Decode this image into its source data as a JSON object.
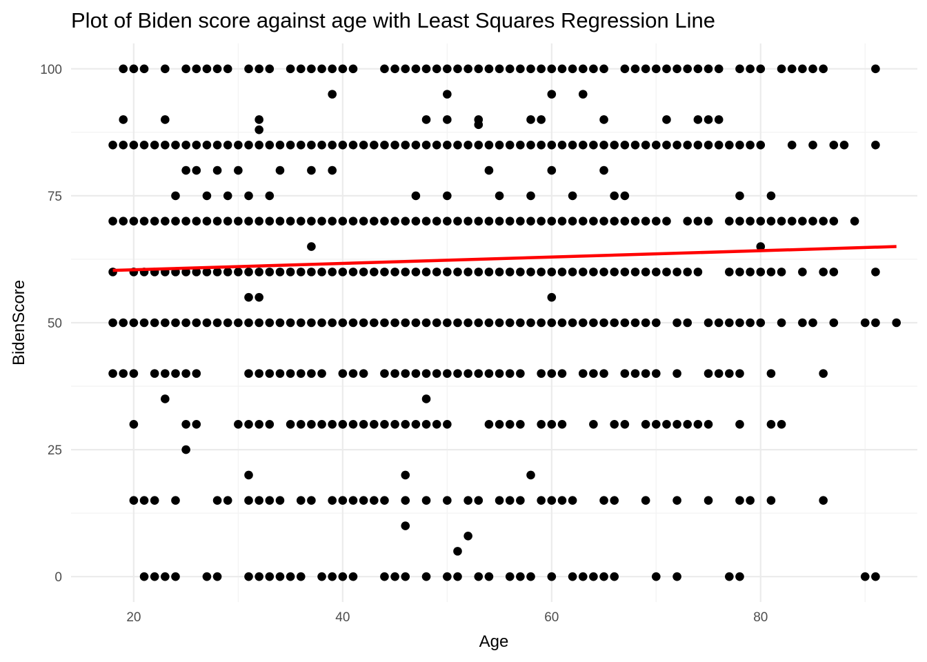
{
  "chart_data": {
    "type": "scatter",
    "title": "Plot of Biden score against age with Least Squares Regression Line",
    "xlabel": "Age",
    "ylabel": "BidenScore",
    "xlim": [
      14,
      95
    ],
    "ylim": [
      -5,
      105
    ],
    "x_ticks": [
      20,
      40,
      60,
      80
    ],
    "y_ticks": [
      0,
      25,
      50,
      75,
      100
    ],
    "grid": true,
    "legend": "none",
    "point_color": "#000000",
    "line_color": "#ff0000",
    "regression_line": {
      "x": [
        18,
        93
      ],
      "y": [
        60.3,
        65.0
      ]
    },
    "rows": [
      {
        "y": 100,
        "x": [
          19,
          20,
          21,
          23,
          25,
          26,
          27,
          28,
          29,
          31,
          32,
          33,
          35,
          36,
          37,
          38,
          39,
          40,
          41,
          44,
          45,
          46,
          47,
          48,
          49,
          50,
          51,
          52,
          53,
          54,
          55,
          56,
          57,
          58,
          59,
          60,
          61,
          62,
          63,
          64,
          65,
          67,
          68,
          69,
          70,
          71,
          72,
          73,
          74,
          75,
          76,
          78,
          79,
          80,
          82,
          83,
          84,
          85,
          86,
          91
        ]
      },
      {
        "y": 95,
        "x": [
          39,
          50,
          60,
          63
        ]
      },
      {
        "y": 90,
        "x": [
          19,
          23,
          32,
          48,
          50,
          53,
          58,
          59,
          65,
          71,
          74,
          75,
          76
        ]
      },
      {
        "y": 89,
        "x": [
          53
        ]
      },
      {
        "y": 88,
        "x": [
          32
        ]
      },
      {
        "y": 85,
        "x": [
          18,
          19,
          20,
          21,
          22,
          23,
          24,
          25,
          26,
          27,
          28,
          29,
          30,
          31,
          32,
          33,
          34,
          35,
          36,
          37,
          38,
          39,
          40,
          41,
          42,
          43,
          44,
          45,
          46,
          47,
          48,
          49,
          50,
          51,
          52,
          53,
          54,
          55,
          56,
          57,
          58,
          59,
          60,
          61,
          62,
          63,
          64,
          65,
          66,
          67,
          68,
          69,
          70,
          71,
          72,
          73,
          74,
          75,
          76,
          77,
          78,
          79,
          80,
          83,
          85,
          87,
          88,
          91
        ]
      },
      {
        "y": 80,
        "x": [
          25,
          26,
          28,
          30,
          34,
          37,
          39,
          54,
          60,
          65
        ]
      },
      {
        "y": 75,
        "x": [
          24,
          27,
          29,
          31,
          33,
          47,
          50,
          55,
          58,
          62,
          66,
          67,
          78,
          81
        ]
      },
      {
        "y": 70,
        "x": [
          18,
          19,
          20,
          21,
          22,
          23,
          24,
          25,
          26,
          27,
          28,
          29,
          30,
          31,
          32,
          33,
          34,
          35,
          36,
          37,
          38,
          39,
          40,
          41,
          42,
          43,
          44,
          45,
          46,
          47,
          48,
          49,
          50,
          51,
          52,
          53,
          54,
          55,
          56,
          57,
          58,
          59,
          60,
          61,
          62,
          63,
          64,
          65,
          66,
          67,
          68,
          69,
          70,
          71,
          73,
          74,
          75,
          77,
          78,
          79,
          80,
          81,
          82,
          83,
          84,
          85,
          86,
          87,
          89
        ]
      },
      {
        "y": 65,
        "x": [
          37,
          80
        ]
      },
      {
        "y": 60,
        "x": [
          18,
          20,
          21,
          22,
          23,
          24,
          25,
          26,
          27,
          28,
          29,
          30,
          31,
          32,
          33,
          34,
          35,
          36,
          37,
          38,
          39,
          40,
          41,
          42,
          43,
          44,
          45,
          46,
          47,
          48,
          49,
          50,
          51,
          52,
          53,
          54,
          55,
          56,
          57,
          58,
          59,
          60,
          61,
          62,
          63,
          64,
          65,
          66,
          67,
          68,
          69,
          70,
          71,
          72,
          73,
          74,
          77,
          78,
          79,
          80,
          81,
          82,
          84,
          86,
          87,
          91
        ]
      },
      {
        "y": 55,
        "x": [
          31,
          32,
          60
        ]
      },
      {
        "y": 50,
        "x": [
          18,
          19,
          20,
          21,
          22,
          23,
          24,
          25,
          26,
          27,
          28,
          29,
          30,
          31,
          32,
          33,
          34,
          35,
          36,
          37,
          38,
          39,
          40,
          41,
          42,
          43,
          44,
          45,
          46,
          47,
          48,
          49,
          50,
          51,
          52,
          53,
          54,
          55,
          56,
          57,
          58,
          59,
          60,
          61,
          62,
          63,
          64,
          65,
          66,
          67,
          68,
          69,
          70,
          72,
          73,
          75,
          76,
          77,
          78,
          79,
          80,
          82,
          84,
          85,
          87,
          90,
          91,
          93
        ]
      },
      {
        "y": 40,
        "x": [
          18,
          19,
          20,
          22,
          23,
          24,
          25,
          26,
          31,
          32,
          33,
          34,
          35,
          36,
          37,
          38,
          40,
          41,
          42,
          44,
          45,
          46,
          47,
          48,
          49,
          50,
          51,
          52,
          53,
          54,
          55,
          56,
          57,
          59,
          60,
          61,
          63,
          64,
          65,
          67,
          68,
          69,
          70,
          72,
          75,
          76,
          77,
          78,
          81,
          86
        ]
      },
      {
        "y": 35,
        "x": [
          23,
          48
        ]
      },
      {
        "y": 30,
        "x": [
          20,
          25,
          26,
          30,
          31,
          32,
          33,
          35,
          36,
          37,
          38,
          39,
          40,
          41,
          42,
          43,
          44,
          45,
          46,
          47,
          48,
          49,
          50,
          54,
          55,
          56,
          57,
          59,
          60,
          61,
          64,
          66,
          67,
          69,
          70,
          71,
          72,
          73,
          74,
          75,
          78,
          81,
          82
        ]
      },
      {
        "y": 25,
        "x": [
          25
        ]
      },
      {
        "y": 20,
        "x": [
          31,
          46,
          58
        ]
      },
      {
        "y": 15,
        "x": [
          20,
          21,
          22,
          24,
          28,
          29,
          31,
          32,
          33,
          34,
          36,
          37,
          39,
          40,
          41,
          42,
          43,
          44,
          46,
          48,
          50,
          52,
          53,
          55,
          56,
          57,
          59,
          60,
          61,
          62,
          65,
          66,
          69,
          72,
          75,
          78,
          79,
          81,
          86
        ]
      },
      {
        "y": 10,
        "x": [
          46
        ]
      },
      {
        "y": 8,
        "x": [
          52
        ]
      },
      {
        "y": 5,
        "x": [
          51
        ]
      },
      {
        "y": 0,
        "x": [
          21,
          22,
          23,
          24,
          27,
          28,
          31,
          32,
          33,
          34,
          35,
          36,
          38,
          39,
          40,
          41,
          44,
          45,
          46,
          48,
          50,
          51,
          53,
          54,
          56,
          57,
          58,
          60,
          62,
          63,
          64,
          65,
          66,
          70,
          72,
          77,
          78,
          90,
          91
        ]
      }
    ]
  }
}
